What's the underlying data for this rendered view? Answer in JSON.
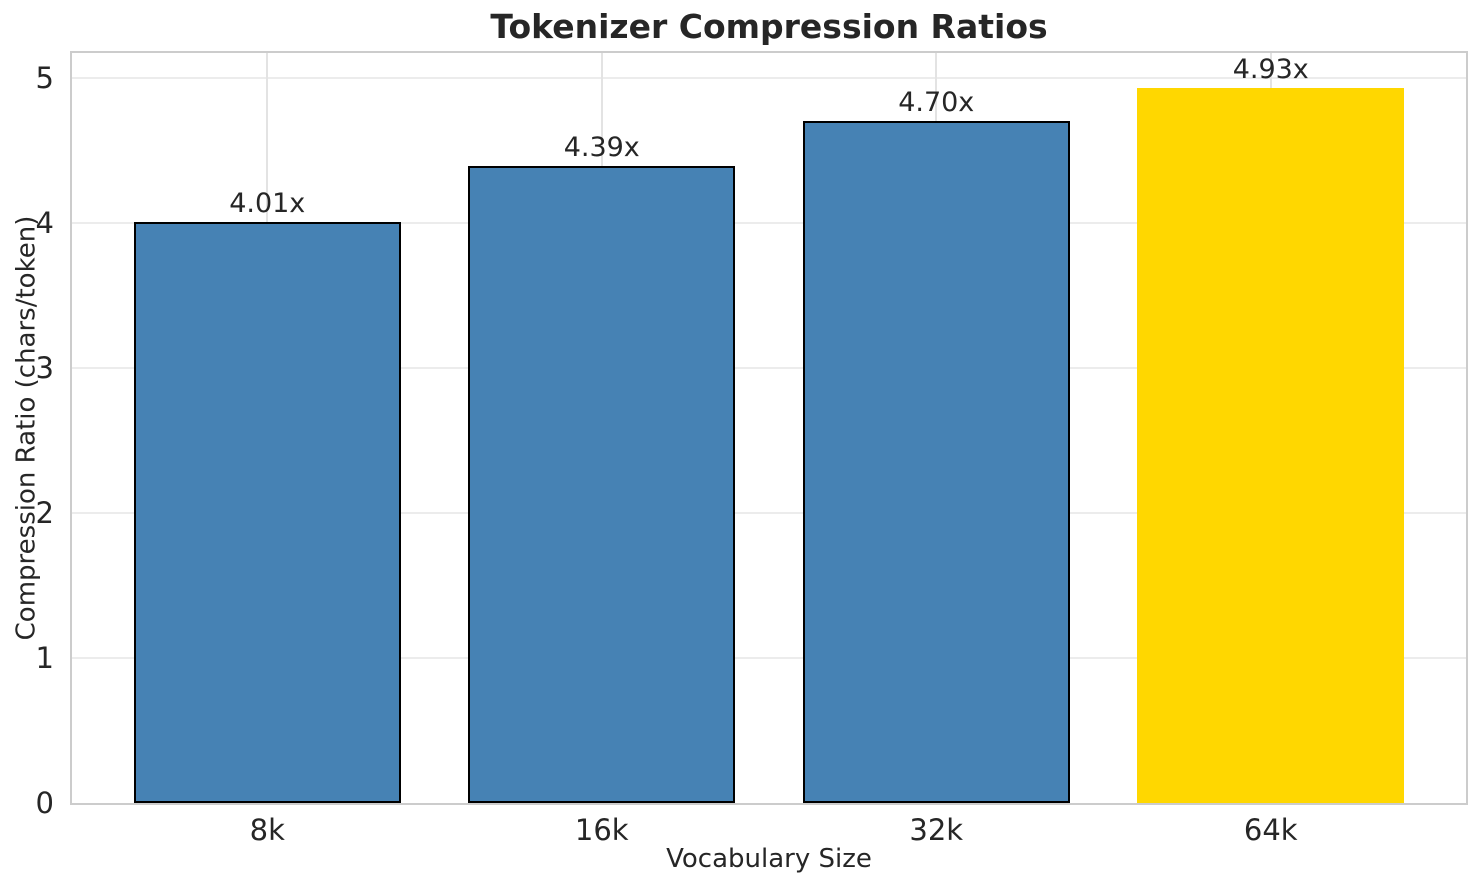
{
  "chart_data": {
    "type": "bar",
    "title": "Tokenizer Compression Ratios",
    "xlabel": "Vocabulary Size",
    "ylabel": "Compression Ratio (chars/token)",
    "categories": [
      "8k",
      "16k",
      "32k",
      "64k"
    ],
    "values": [
      4.01,
      4.39,
      4.7,
      4.93
    ],
    "bar_labels": [
      "4.01x",
      "4.39x",
      "4.70x",
      "4.93x"
    ],
    "bar_colors": [
      "#4682B4",
      "#4682B4",
      "#4682B4",
      "#FFD700"
    ],
    "bar_edge_colors": [
      "#000000",
      "#000000",
      "#000000",
      "none"
    ],
    "ylim": [
      0,
      5
    ],
    "yticks": [
      "0",
      "1",
      "2",
      "3",
      "4",
      "5"
    ],
    "grid": true,
    "legend_position": "none",
    "highlighted_category": "64k"
  },
  "style": {
    "text_color": "#262626",
    "spine_color": "#cccccc",
    "grid_color": "#ececec",
    "vgrid_color": "#e3e3e3",
    "steelblue": "#4682B4",
    "gold": "#FFD700",
    "background": "#ffffff"
  }
}
